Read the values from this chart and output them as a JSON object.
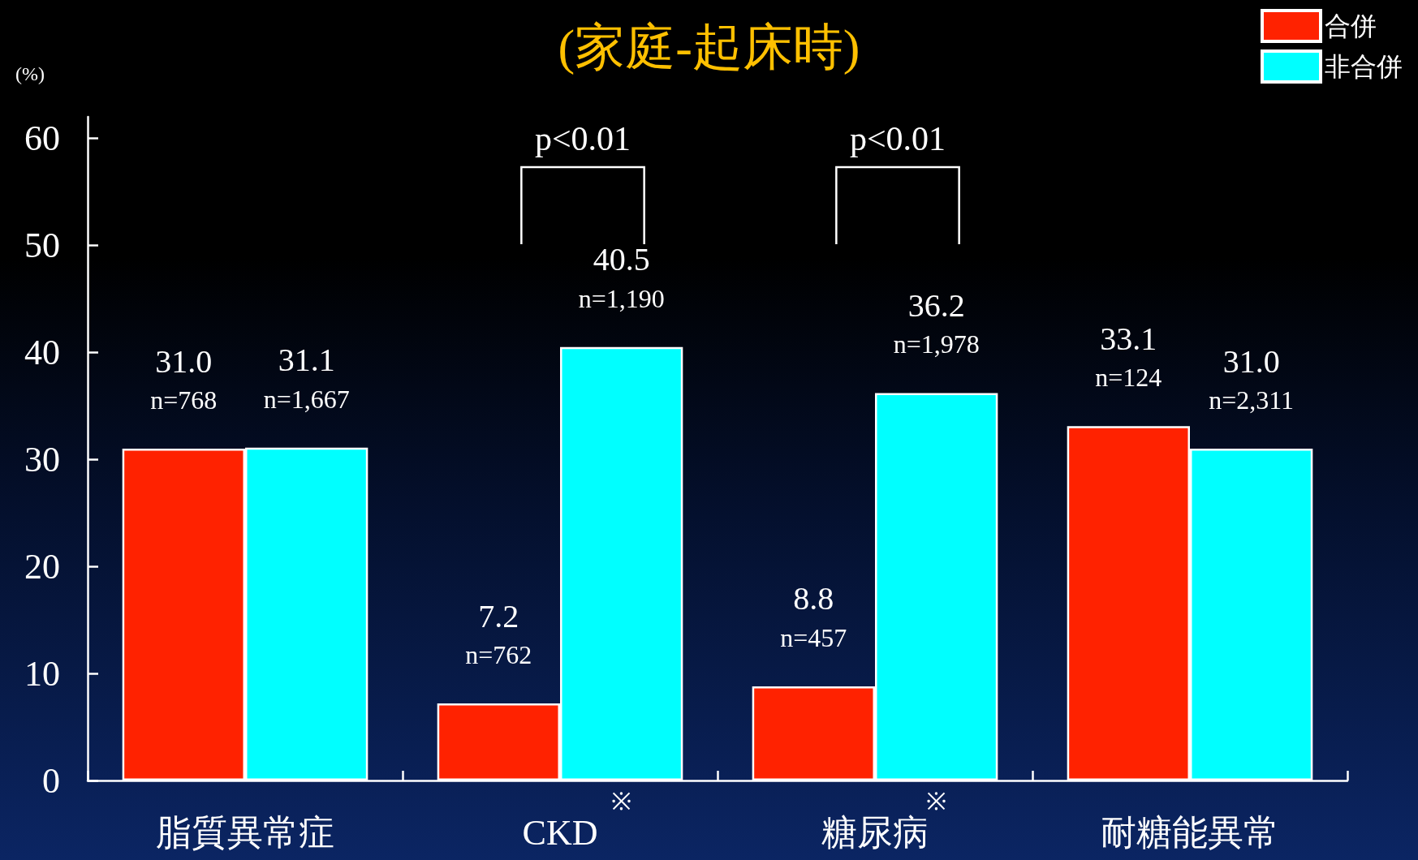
{
  "chart_data": {
    "type": "bar",
    "title": "(家庭-起床時)",
    "ylabel": "(%)",
    "categories": [
      "脂質異常症",
      "CKD",
      "糖尿病",
      "耐糖能異常"
    ],
    "series": [
      {
        "name": "合併",
        "color": "#ff2200",
        "values": [
          31.0,
          7.2,
          8.8,
          33.1
        ],
        "value_labels": [
          "31.0\nn=768",
          "7.2\nn=762",
          "8.8\nn=457",
          "33.1\nn=124"
        ]
      },
      {
        "name": "非合併",
        "color": "#00ffff",
        "values": [
          31.1,
          40.5,
          36.2,
          31.0
        ],
        "value_labels": [
          "31.1\nn=1,667",
          "40.5\nn=1,190",
          "36.2\nn=1,978",
          "31.0\nn=2,311"
        ]
      }
    ],
    "ylim": [
      0,
      62
    ],
    "yticks": [
      0,
      10,
      20,
      30,
      40,
      50,
      60
    ],
    "legend": "top right",
    "annotations": [
      "p<0.01",
      "p<0.01",
      "※",
      "※"
    ]
  }
}
